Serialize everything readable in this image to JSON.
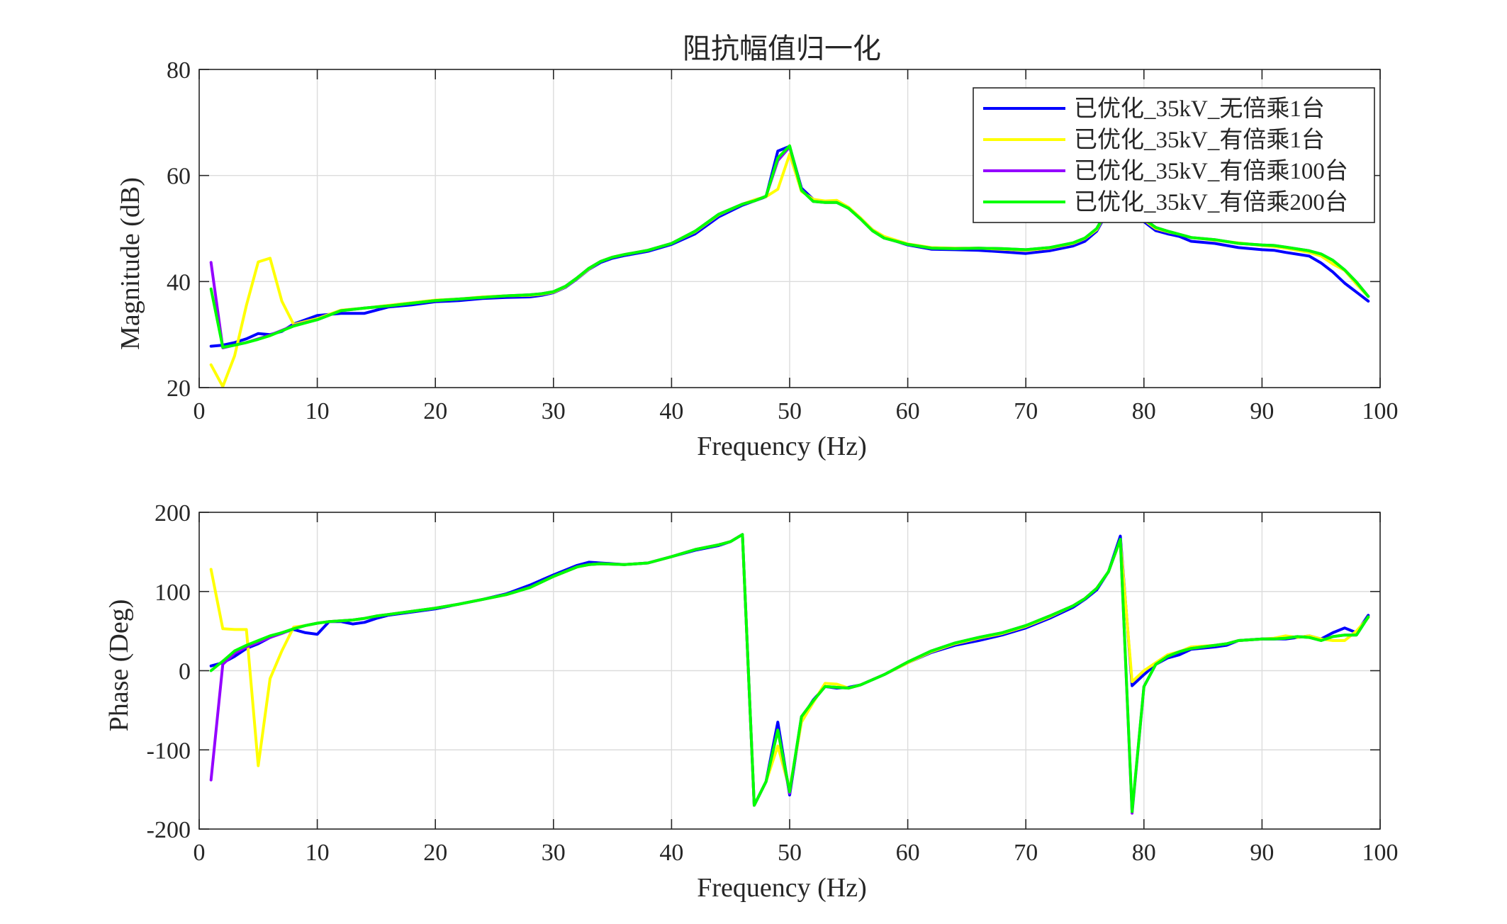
{
  "chart_data": [
    {
      "type": "line",
      "title": "阻抗幅值归一化",
      "xlabel": "Frequency (Hz)",
      "ylabel": "Magnitude (dB)",
      "xlim": [
        0,
        100
      ],
      "ylim": [
        20,
        80
      ],
      "xticks": [
        "0",
        "10",
        "20",
        "30",
        "40",
        "50",
        "60",
        "70",
        "80",
        "90",
        "100"
      ],
      "yticks": [
        "20",
        "40",
        "60",
        "80"
      ],
      "grid": true,
      "legend": "top-right",
      "x": [
        1,
        2,
        3,
        4,
        5,
        6,
        7,
        8,
        10,
        12,
        14,
        16,
        18,
        20,
        22,
        24,
        26,
        28,
        29,
        30,
        31,
        32,
        33,
        34,
        35,
        36,
        38,
        40,
        42,
        44,
        46,
        47,
        48,
        49,
        50,
        51,
        52,
        53,
        54,
        55,
        56,
        57,
        58,
        60,
        62,
        64,
        66,
        68,
        70,
        72,
        74,
        75,
        76,
        77,
        78,
        79,
        80,
        81,
        82,
        83,
        84,
        86,
        88,
        90,
        91,
        92,
        94,
        95,
        96,
        97,
        98,
        99
      ],
      "series": [
        {
          "name": "已优化_35kV_无倍乘1台",
          "color": "#0000ff",
          "values": [
            27.8,
            28.0,
            28.5,
            29.2,
            30.2,
            30.0,
            30.6,
            32.0,
            33.6,
            34.0,
            34.0,
            35.2,
            35.6,
            36.2,
            36.4,
            36.8,
            37.0,
            37.1,
            37.4,
            37.9,
            38.9,
            40.5,
            42.3,
            43.6,
            44.4,
            44.9,
            45.7,
            47.0,
            49.0,
            52.2,
            54.4,
            55.2,
            56.0,
            64.6,
            65.5,
            57.6,
            55.5,
            55.0,
            55.0,
            53.8,
            51.9,
            49.8,
            48.3,
            46.9,
            46.1,
            46.0,
            45.9,
            45.6,
            45.3,
            45.8,
            46.7,
            47.6,
            49.5,
            53.5,
            56.0,
            53.0,
            51.3,
            49.6,
            49.0,
            48.5,
            47.6,
            47.2,
            46.4,
            46.0,
            45.9,
            45.5,
            44.8,
            43.5,
            41.8,
            39.7,
            38.0,
            36.3
          ]
        },
        {
          "name": "已优化_35kV_有倍乘1台",
          "color": "#ffff00",
          "values": [
            24.3,
            20.2,
            26.0,
            35.5,
            43.7,
            44.4,
            36.3,
            31.9,
            33.0,
            34.6,
            35.0,
            35.5,
            36.0,
            36.5,
            36.7,
            37.1,
            37.3,
            37.4,
            37.6,
            38.0,
            39.0,
            40.6,
            42.4,
            43.8,
            44.6,
            45.1,
            45.9,
            47.2,
            49.4,
            52.6,
            54.6,
            55.4,
            56.0,
            57.4,
            64.0,
            57.0,
            55.5,
            55.2,
            55.3,
            54.0,
            52.0,
            49.8,
            48.5,
            47.1,
            46.4,
            46.3,
            46.3,
            46.1,
            45.9,
            46.3,
            47.2,
            48.1,
            49.8,
            53.8,
            55.6,
            54.0,
            51.6,
            50.0,
            49.4,
            48.9,
            48.3,
            47.8,
            47.3,
            46.8,
            46.6,
            46.3,
            45.5,
            44.8,
            43.3,
            42.1,
            39.5,
            37.2
          ]
        },
        {
          "name": "已优化_35kV_有倍乘100台",
          "color": "#9400ff",
          "values": [
            43.6,
            27.5,
            28.0,
            28.5,
            29.2,
            29.9,
            30.8,
            31.7,
            32.8,
            34.5,
            35.0,
            35.4,
            35.9,
            36.4,
            36.7,
            37.0,
            37.3,
            37.5,
            37.7,
            38.1,
            39.1,
            40.7,
            42.5,
            43.8,
            44.6,
            45.1,
            45.9,
            47.2,
            49.5,
            52.7,
            54.6,
            55.2,
            56.1,
            62.8,
            65.4,
            57.3,
            55.1,
            54.9,
            54.9,
            53.8,
            51.8,
            49.6,
            48.2,
            47.0,
            46.3,
            46.2,
            46.3,
            46.2,
            46.0,
            46.4,
            47.3,
            48.2,
            50.0,
            53.9,
            55.9,
            53.6,
            51.8,
            50.2,
            49.5,
            48.9,
            48.3,
            47.9,
            47.2,
            46.9,
            46.8,
            46.5,
            45.8,
            45.2,
            44.0,
            42.2,
            39.9,
            37.2
          ]
        },
        {
          "name": "已优化_35kV_有倍乘200台",
          "color": "#00ff00",
          "values": [
            38.6,
            27.6,
            28.0,
            28.5,
            29.1,
            29.8,
            30.7,
            31.6,
            32.8,
            34.5,
            35.0,
            35.4,
            35.9,
            36.4,
            36.7,
            37.0,
            37.3,
            37.5,
            37.7,
            38.1,
            39.1,
            40.7,
            42.5,
            43.8,
            44.6,
            45.1,
            45.9,
            47.2,
            49.5,
            52.7,
            54.6,
            55.2,
            56.1,
            63.3,
            65.6,
            57.2,
            55.1,
            54.9,
            54.9,
            53.8,
            51.8,
            49.6,
            48.2,
            47.0,
            46.3,
            46.2,
            46.3,
            46.2,
            46.0,
            46.4,
            47.3,
            48.2,
            50.0,
            53.9,
            55.9,
            53.6,
            51.8,
            50.2,
            49.5,
            48.9,
            48.3,
            47.9,
            47.2,
            46.9,
            46.8,
            46.5,
            45.8,
            45.2,
            44.0,
            42.2,
            39.9,
            37.2
          ]
        }
      ]
    },
    {
      "type": "line",
      "title": "",
      "xlabel": "Frequency (Hz)",
      "ylabel": "Phase (Deg)",
      "xlim": [
        0,
        100
      ],
      "ylim": [
        -200,
        200
      ],
      "xticks": [
        "0",
        "10",
        "20",
        "30",
        "40",
        "50",
        "60",
        "70",
        "80",
        "90",
        "100"
      ],
      "yticks": [
        "-200",
        "-100",
        "0",
        "100",
        "200"
      ],
      "grid": true,
      "x": [
        1,
        2,
        3,
        4,
        5,
        6,
        7,
        8,
        9,
        10,
        11,
        12,
        13,
        14,
        15,
        16,
        18,
        20,
        22,
        24,
        26,
        28,
        30,
        32,
        33,
        34,
        36,
        38,
        40,
        42,
        44,
        45,
        46,
        47,
        48,
        49,
        50,
        51,
        52,
        53,
        54,
        55,
        56,
        58,
        60,
        62,
        64,
        66,
        68,
        70,
        72,
        74,
        75,
        76,
        77,
        78,
        79,
        80,
        81,
        82,
        83,
        84,
        86,
        87,
        88,
        90,
        91,
        92,
        93,
        94,
        95,
        96,
        97,
        98,
        99
      ],
      "series": [
        {
          "name": "已优化_35kV_无倍乘1台",
          "color": "#0000ff",
          "values": [
            6,
            10,
            18,
            28,
            34,
            42,
            48,
            52,
            48,
            46,
            62,
            62,
            59,
            61,
            66,
            70,
            74,
            78,
            84,
            90,
            97,
            108,
            121,
            133,
            137,
            136,
            134,
            136,
            144,
            152,
            158,
            163,
            172,
            -170,
            -140,
            -65,
            -157,
            -60,
            -37,
            -20,
            -22,
            -21,
            -18,
            -5,
            10,
            23,
            32,
            38,
            45,
            54,
            66,
            80,
            90,
            102,
            125,
            170,
            -19,
            -5,
            8,
            16,
            20,
            27,
            30,
            32,
            38,
            40,
            40,
            40,
            42,
            44,
            40,
            48,
            54,
            48,
            70
          ]
        },
        {
          "name": "已优化_35kV_有倍乘1台",
          "color": "#ffff00",
          "values": [
            128,
            53,
            52,
            52,
            -120,
            -10,
            25,
            55,
            57,
            60,
            62,
            63,
            64,
            66,
            69,
            71,
            75,
            79,
            84,
            90,
            96,
            105,
            119,
            131,
            134,
            135,
            134,
            136,
            144,
            153,
            159,
            163,
            172,
            -170,
            -140,
            -95,
            -150,
            -65,
            -40,
            -16,
            -17,
            -22,
            -18,
            -5,
            10,
            24,
            34,
            41,
            47,
            56,
            68,
            82,
            91,
            104,
            125,
            165,
            -14,
            0,
            10,
            20,
            24,
            30,
            32,
            34,
            38,
            40,
            41,
            44,
            42,
            44,
            40,
            38,
            38,
            50,
            67
          ]
        },
        {
          "name": "已优化_35kV_有倍乘100台",
          "color": "#9400ff",
          "values": [
            -138,
            8,
            22,
            30,
            36,
            42,
            47,
            53,
            57,
            60,
            62,
            63,
            64,
            66,
            69,
            71,
            75,
            79,
            84,
            90,
            96,
            105,
            119,
            131,
            134,
            135,
            134,
            136,
            144,
            153,
            159,
            163,
            172,
            -170,
            -140,
            -75,
            -155,
            -58,
            -38,
            -20,
            -21,
            -22,
            -18,
            -5,
            11,
            25,
            35,
            42,
            48,
            57,
            69,
            82,
            91,
            104,
            125,
            166,
            -180,
            -20,
            8,
            18,
            24,
            28,
            32,
            34,
            38,
            40,
            40,
            41,
            43,
            42,
            38,
            43,
            45,
            45,
            68
          ]
        },
        {
          "name": "已优化_35kV_有倍乘200台",
          "color": "#00ff00",
          "values": [
            0,
            12,
            25,
            32,
            38,
            44,
            48,
            53,
            57,
            60,
            62,
            63,
            64,
            66,
            69,
            71,
            75,
            79,
            84,
            90,
            96,
            105,
            119,
            131,
            134,
            135,
            134,
            136,
            144,
            153,
            159,
            163,
            172,
            -170,
            -140,
            -75,
            -153,
            -58,
            -38,
            -20,
            -21,
            -22,
            -18,
            -5,
            11,
            25,
            35,
            42,
            48,
            57,
            69,
            82,
            91,
            104,
            125,
            166,
            -178,
            -20,
            8,
            18,
            24,
            28,
            32,
            34,
            38,
            40,
            40,
            41,
            43,
            42,
            38,
            43,
            45,
            45,
            68
          ]
        }
      ]
    }
  ]
}
